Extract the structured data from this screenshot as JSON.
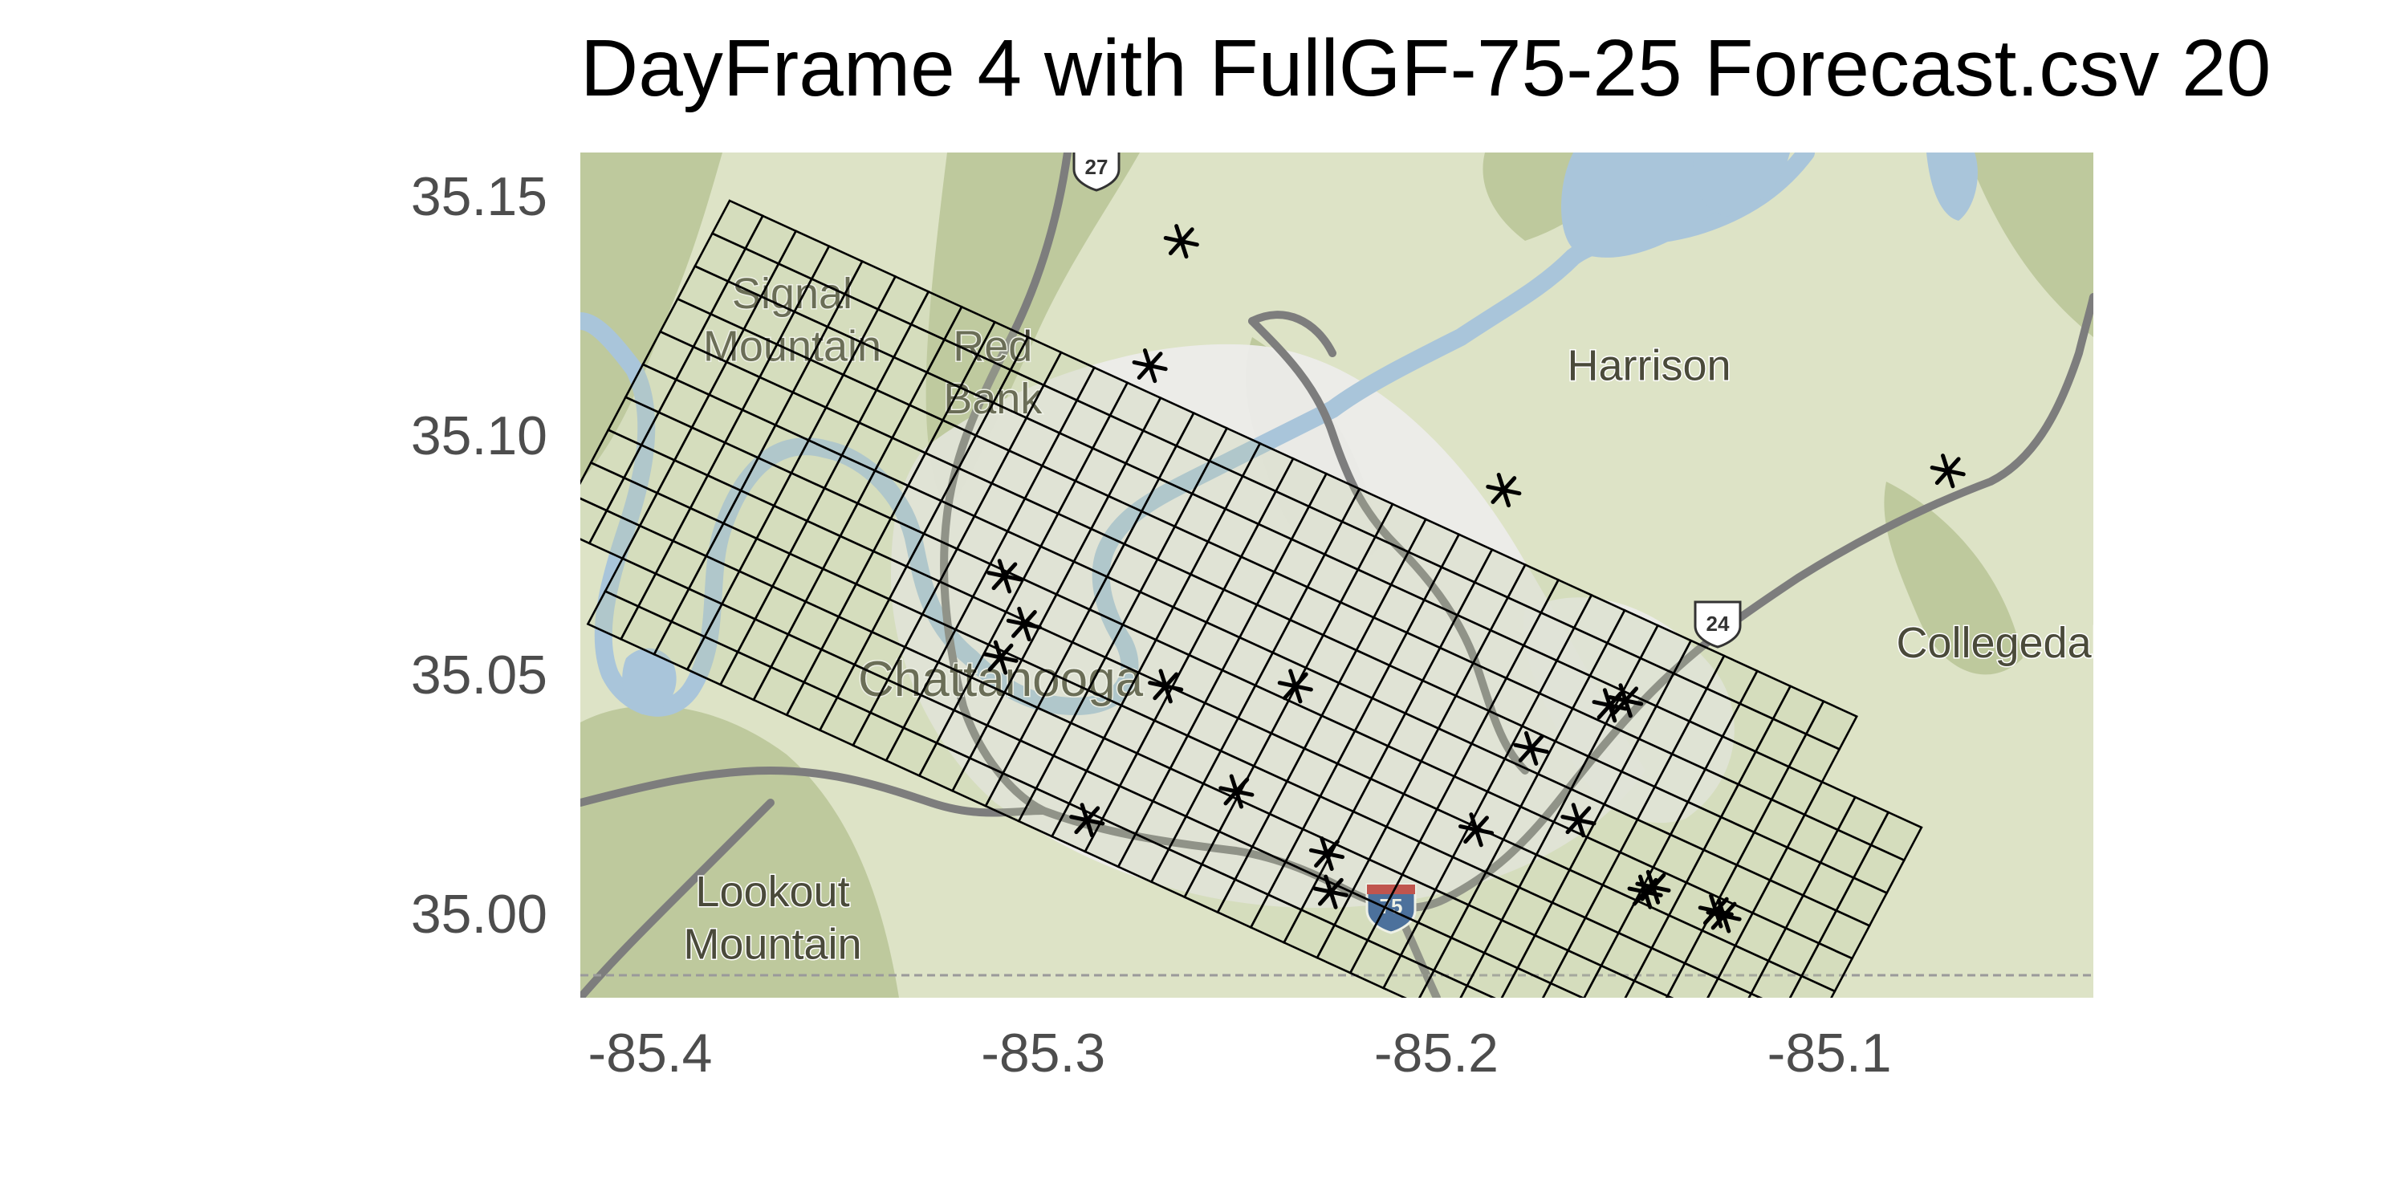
{
  "title": "DayFrame 4 with FullGF-75-25 Forecast.csv 20",
  "chart_data": {
    "type": "scatter",
    "x_ticks": [
      "-85.4",
      "-85.3",
      "-85.2",
      "-85.1"
    ],
    "x_tick_values": [
      -85.4,
      -85.3,
      -85.2,
      -85.1
    ],
    "y_ticks": [
      "35.00",
      "35.05",
      "35.10",
      "35.15"
    ],
    "y_tick_values": [
      35.0,
      35.05,
      35.1,
      35.15
    ],
    "xlim": [
      -85.4,
      -85.015
    ],
    "ylim": [
      34.983,
      35.16
    ],
    "marker": "asterisk",
    "points": [
      {
        "lon": -85.2475,
        "lat": 35.1405
      },
      {
        "lon": -85.2555,
        "lat": 35.1145
      },
      {
        "lon": -85.1655,
        "lat": 35.0885
      },
      {
        "lon": -85.0525,
        "lat": 35.0925
      },
      {
        "lon": -85.2925,
        "lat": 35.0705
      },
      {
        "lon": -85.2875,
        "lat": 35.0605
      },
      {
        "lon": -85.2935,
        "lat": 35.0535
      },
      {
        "lon": -85.2515,
        "lat": 35.0475
      },
      {
        "lon": -85.2185,
        "lat": 35.0475
      },
      {
        "lon": -85.1385,
        "lat": 35.0435
      },
      {
        "lon": -85.1345,
        "lat": 35.0445
      },
      {
        "lon": -85.1585,
        "lat": 35.0345
      },
      {
        "lon": -85.2335,
        "lat": 35.0255
      },
      {
        "lon": -85.2715,
        "lat": 35.0195
      },
      {
        "lon": -85.1465,
        "lat": 35.0195
      },
      {
        "lon": -85.1725,
        "lat": 35.0175
      },
      {
        "lon": -85.2105,
        "lat": 35.0125
      },
      {
        "lon": -85.2095,
        "lat": 35.0045
      },
      {
        "lon": -85.1295,
        "lat": 35.0045
      },
      {
        "lon": -85.1275,
        "lat": 35.0055
      },
      {
        "lon": -85.1115,
        "lat": 35.0005
      },
      {
        "lon": -85.1095,
        "lat": 34.9995
      }
    ]
  },
  "map": {
    "places": [
      {
        "name": "Signal",
        "lon": -85.3465,
        "lat": 35.1265
      },
      {
        "name": "Mountain",
        "lon": -85.3465,
        "lat": 35.1155
      },
      {
        "name": "Red",
        "lon": -85.2955,
        "lat": 35.1155
      },
      {
        "name": "Bank",
        "lon": -85.2955,
        "lat": 35.1045
      },
      {
        "name": "Harrison",
        "lon": -85.1285,
        "lat": 35.1115
      },
      {
        "name": "Collegedale",
        "lon": -85.0365,
        "lat": 35.0535
      },
      {
        "name": "Chattanooga",
        "lon": -85.2935,
        "lat": 35.0455
      },
      {
        "name": "Lookout",
        "lon": -85.3515,
        "lat": 35.0015
      },
      {
        "name": "Mountain",
        "lon": -85.3515,
        "lat": 34.9905
      }
    ],
    "shields": [
      "27",
      "24",
      "75"
    ],
    "colors": {
      "land": "#dde3c6",
      "ridge": "#b3c08f",
      "urban": "#ececea",
      "water": "#a9c5da",
      "road": "#7d7d7d",
      "grid_cell": "#c3cca6",
      "grid_line": "#000000",
      "marker": "#000000"
    }
  }
}
